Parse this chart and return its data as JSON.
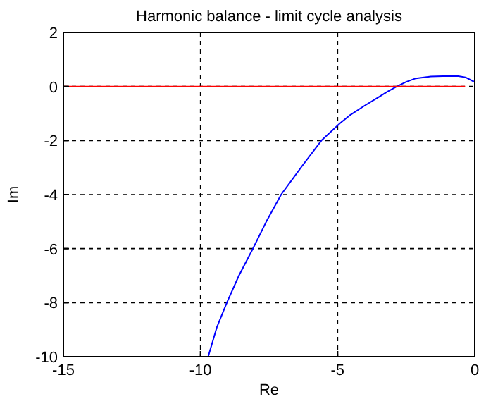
{
  "chart_data": {
    "type": "line",
    "title": "Harmonic balance - limit cycle analysis",
    "xlabel": "Re",
    "ylabel": "Im",
    "xlim": [
      -15,
      0
    ],
    "xticks": [
      -15,
      -10,
      -5,
      0
    ],
    "ylim": [
      -10,
      2
    ],
    "yticks": [
      -10,
      -8,
      -6,
      -4,
      -2,
      0,
      2
    ],
    "grid": true,
    "line_style": "solid",
    "marker": "none",
    "series": [
      {
        "color": "#0000ff",
        "x": [
          -9.72,
          -9.4,
          -9.04,
          -8.6,
          -8.09,
          -7.6,
          -7.06,
          -6.3,
          -5.59,
          -4.91,
          -4.56,
          -4.0,
          -3.53,
          -3.2,
          -2.84,
          -2.5,
          -2.15,
          -1.6,
          -0.95,
          -0.6,
          -0.34,
          -0.03
        ],
        "values": [
          -10,
          -8.9,
          -8,
          -7,
          -6,
          -5,
          -4,
          -2.95,
          -2,
          -1.36,
          -1.07,
          -0.7,
          -0.41,
          -0.2,
          0,
          0.17,
          0.3,
          0.37,
          0.39,
          0.38,
          0.34,
          0.18
        ]
      },
      {
        "color": "#ff0000",
        "x": [
          -15,
          -0.35
        ],
        "values": [
          0,
          0
        ]
      }
    ]
  }
}
